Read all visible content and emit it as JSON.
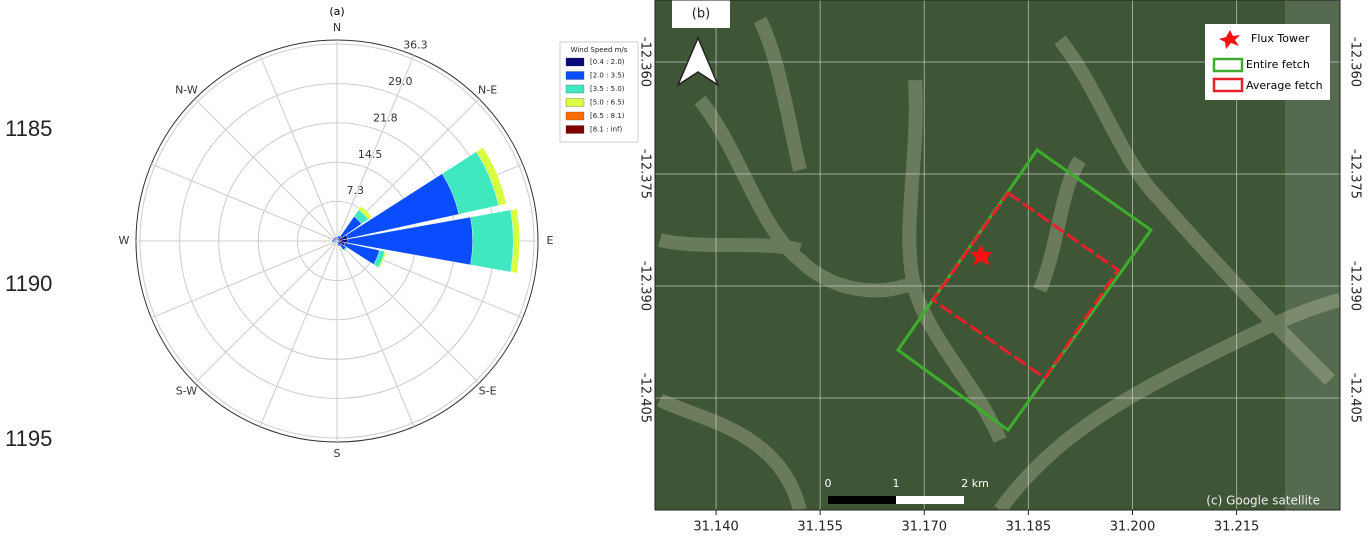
{
  "line_numbers": [
    "1185",
    "1190",
    "1195"
  ],
  "chart_data": {
    "type": "windrose",
    "title": "(a)",
    "legend_title": "Wind Speed m/s",
    "categories": [
      "N",
      null,
      "N-E",
      null,
      "E",
      null,
      "S-E",
      null,
      "S",
      null,
      "S-W",
      null,
      "W",
      null,
      "N-W",
      null
    ],
    "rlim": [
      0,
      36.3
    ],
    "rticks": [
      7.3,
      14.5,
      21.8,
      {
        "value": 29,
        "label": "29.0"
      },
      36.3
    ],
    "series": [
      {
        "name": "[0.4 : 2.0)",
        "color": "#0a0a78",
        "values": [
          0.5,
          0.5,
          1,
          2,
          2,
          1.5,
          1,
          0.5,
          0.3,
          0.3,
          0.3,
          0.3,
          0.5,
          0.5,
          0.5,
          0.5
        ]
      },
      {
        "name": "[2.0 : 3.5)",
        "color": "#0a4cff",
        "values": [
          0.3,
          0.5,
          4.5,
          21,
          23,
          6.5,
          1,
          0.5,
          0.2,
          0.2,
          0.2,
          0.3,
          0.5,
          0.3,
          0.3,
          0.3
        ]
      },
      {
        "name": "[3.5 : 5.0)",
        "color": "#40e8c0",
        "values": [
          0,
          0.2,
          1.5,
          7.5,
          7.5,
          1,
          0.3,
          0,
          0,
          0,
          0,
          0,
          0,
          0,
          0,
          0
        ]
      },
      {
        "name": "[5.0 : 6.5)",
        "color": "#d8ff40",
        "values": [
          0,
          0,
          0.8,
          1.5,
          1.2,
          0.3,
          0,
          0,
          0,
          0,
          0,
          0,
          0,
          0,
          0,
          0
        ]
      },
      {
        "name": "[6.5 : 8.1)",
        "color": "#ff6a00",
        "values": [
          0,
          0,
          0,
          0,
          0,
          0,
          0,
          0,
          0,
          0,
          0,
          0,
          0,
          0,
          0,
          0
        ]
      },
      {
        "name": "[8.1 : inf)",
        "color": "#800000",
        "values": [
          0,
          0,
          0,
          0,
          0,
          0,
          0,
          0,
          0,
          0,
          0,
          0,
          0,
          0,
          0,
          0
        ]
      }
    ]
  },
  "map": {
    "label": "(b)",
    "xlim": [
      31.1312,
      31.2299
    ],
    "ylim": [
      -12.42,
      -12.3517
    ],
    "xticks": [
      {
        "value": 31.14,
        "label": "31.140"
      },
      {
        "value": 31.155,
        "label": "31.155"
      },
      {
        "value": 31.17,
        "label": "31.170"
      },
      {
        "value": 31.185,
        "label": "31.185"
      },
      {
        "value": 31.2,
        "label": "31.200"
      },
      {
        "value": 31.215,
        "label": "31.215"
      }
    ],
    "yticks": [
      {
        "value": -12.36,
        "label": "-12.360"
      },
      {
        "value": -12.375,
        "label": "-12.375"
      },
      {
        "value": -12.39,
        "label": "-12.390"
      },
      {
        "value": -12.405,
        "label": "-12.405"
      }
    ],
    "legend": [
      "Flux Tower",
      "Entire fetch",
      "Average fetch"
    ],
    "scale_bar": [
      "0",
      "1",
      "2 km"
    ],
    "credit": "(c) Google satellite"
  }
}
